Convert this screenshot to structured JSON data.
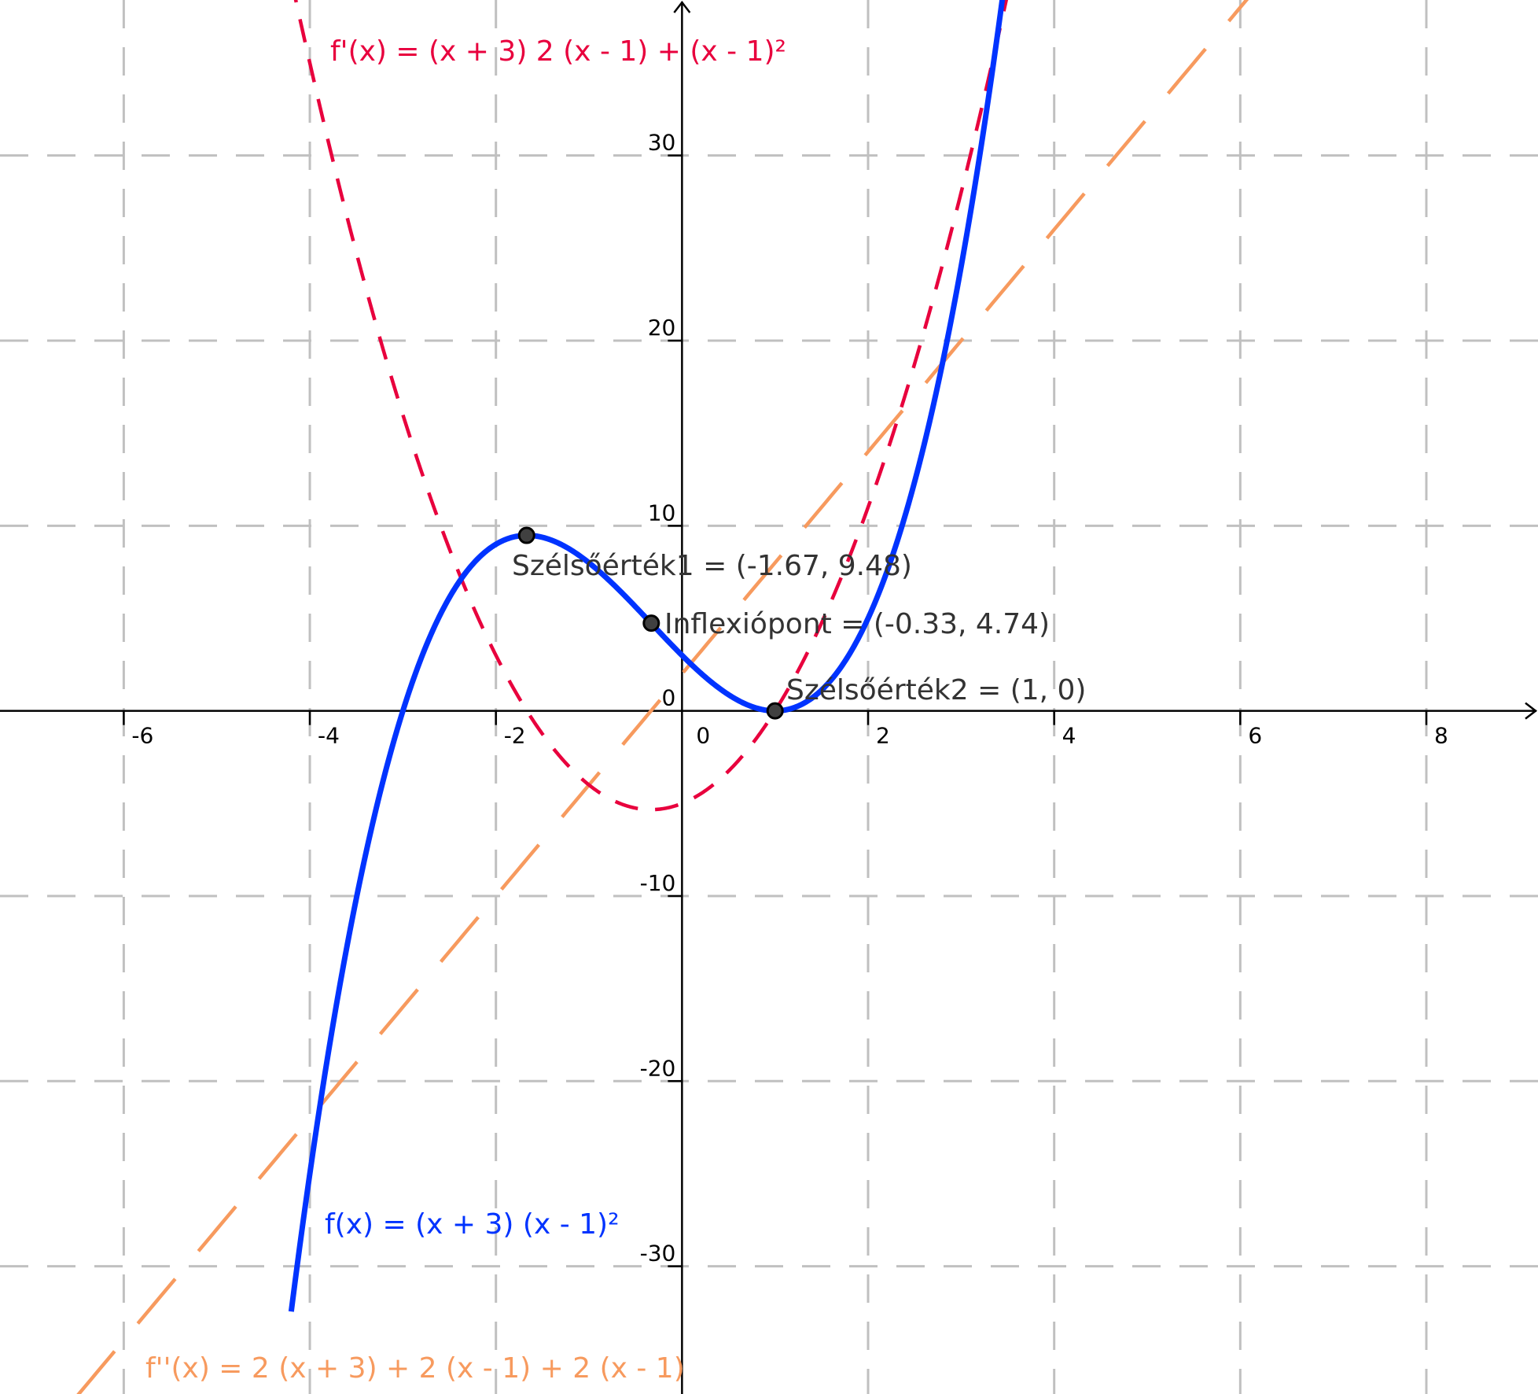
{
  "chart_data": {
    "type": "line",
    "title": "",
    "xlabel": "",
    "ylabel": "",
    "xlim": [
      -7.33,
      9.2
    ],
    "ylim": [
      -36.9,
      38.4
    ],
    "grid": true,
    "x_ticks": [
      -6,
      -4,
      -2,
      0,
      2,
      4,
      6,
      8
    ],
    "x_tick_labels": [
      "-6",
      "-4",
      "-2",
      "0",
      "2",
      "4",
      "6",
      "8"
    ],
    "y_ticks": [
      -30,
      -20,
      -10,
      0,
      10,
      20,
      30
    ],
    "y_tick_labels": [
      "-30",
      "-20",
      "-10",
      "0",
      "10",
      "20",
      "30"
    ],
    "series": [
      {
        "key": "f",
        "label": "f(x) = (x + 3) (x - 1)²",
        "color": "#0033ff",
        "style": "solid",
        "x_range": [
          -4.2,
          3.5
        ],
        "points": [
          [
            -4,
            -25
          ],
          [
            -3,
            0
          ],
          [
            -2.5,
            6.125
          ],
          [
            -1.67,
            9.48
          ],
          [
            -1,
            8
          ],
          [
            -0.33,
            4.74
          ],
          [
            0,
            3
          ],
          [
            0.5,
            0.875
          ],
          [
            1,
            0
          ],
          [
            2,
            5
          ],
          [
            3,
            24
          ]
        ]
      },
      {
        "key": "fp",
        "label": "f'(x) = (x + 3) 2 (x - 1) + (x - 1)²",
        "color": "#e8003d",
        "style": "dashed",
        "x_range": [
          -4.2,
          3.5
        ],
        "points": [
          [
            -4,
            35
          ],
          [
            -3,
            16
          ],
          [
            -2,
            3
          ],
          [
            -1.67,
            0
          ],
          [
            -1,
            -4
          ],
          [
            -0.33,
            -5.33
          ],
          [
            0,
            -5
          ],
          [
            1,
            0
          ],
          [
            2,
            11
          ],
          [
            3,
            28
          ]
        ]
      },
      {
        "key": "fpp",
        "label": "f''(x) = 2 (x + 3) + 2 (x - 1) + 2 (x - 1)",
        "color": "#f79a5e",
        "style": "dashed",
        "x_range": [
          -6.5,
          9.5
        ],
        "points": [
          [
            -6,
            -34
          ],
          [
            -4,
            -22
          ],
          [
            -2,
            -10
          ],
          [
            -0.33,
            0
          ],
          [
            0,
            2
          ],
          [
            2,
            14
          ],
          [
            4,
            26
          ],
          [
            6,
            38
          ]
        ]
      }
    ],
    "special_points": [
      {
        "name": "Szélsőérték1",
        "x": -1.67,
        "y": 9.48,
        "label": "Szélsőérték1 = (-1.67, 9.48)"
      },
      {
        "name": "Inflexiópont",
        "x": -0.33,
        "y": 4.74,
        "label": "Inflexiópont = (-0.33, 4.74)"
      },
      {
        "name": "Szélsőérték2",
        "x": 1,
        "y": 0,
        "label": "Szélsőérték2 = (1, 0)"
      }
    ]
  }
}
